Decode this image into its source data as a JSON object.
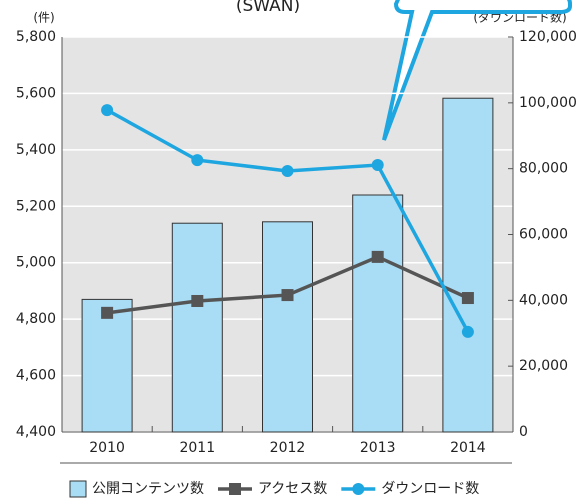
{
  "chart_data": {
    "type": "bar",
    "title": "(SWAN)",
    "y_label": "(件)",
    "y2_label": "(ダウンロード数)",
    "categories": [
      "2010",
      "2011",
      "2012",
      "2013",
      "2014"
    ],
    "series": [
      {
        "name": "公開コンテンツ数",
        "type": "bar",
        "color": "#a9dcf5",
        "values": [
          4870,
          5140,
          5145,
          5240,
          5583
        ]
      },
      {
        "name": "アクセス数",
        "type": "line",
        "marker": "square",
        "axis": "y2",
        "color": "#555555",
        "values": [
          36200,
          39800,
          41600,
          53200,
          40700
        ]
      },
      {
        "name": "ダウンロード数",
        "type": "line",
        "marker": "circle",
        "axis": "y2",
        "color": "#1ea6e0",
        "values": [
          97800,
          82600,
          79300,
          81100,
          30400
        ]
      }
    ],
    "ylim": [
      4400,
      5800
    ],
    "yticks": [
      {
        "value": 4400,
        "label": "4,400"
      },
      {
        "value": 4600,
        "label": "4,600"
      },
      {
        "value": 4800,
        "label": "4,800"
      },
      {
        "value": 5000,
        "label": "5,000"
      },
      {
        "value": 5200,
        "label": "5,200"
      },
      {
        "value": 5400,
        "label": "5,400"
      },
      {
        "value": 5600,
        "label": "5,600"
      },
      {
        "value": 5800,
        "label": "5,800"
      }
    ],
    "y2lim": [
      0,
      120000
    ],
    "y2ticks": [
      0,
      {
        "value": 20000,
        "label": "20,000"
      },
      {
        "value": 40000,
        "label": "40,000"
      },
      {
        "value": 60000,
        "label": "60,000"
      },
      {
        "value": 80000,
        "label": "80,000"
      },
      {
        "value": 100000,
        "label": "100,000"
      },
      {
        "value": 120000,
        "label": "120,000"
      }
    ],
    "grid": true,
    "legend": "bottom"
  }
}
